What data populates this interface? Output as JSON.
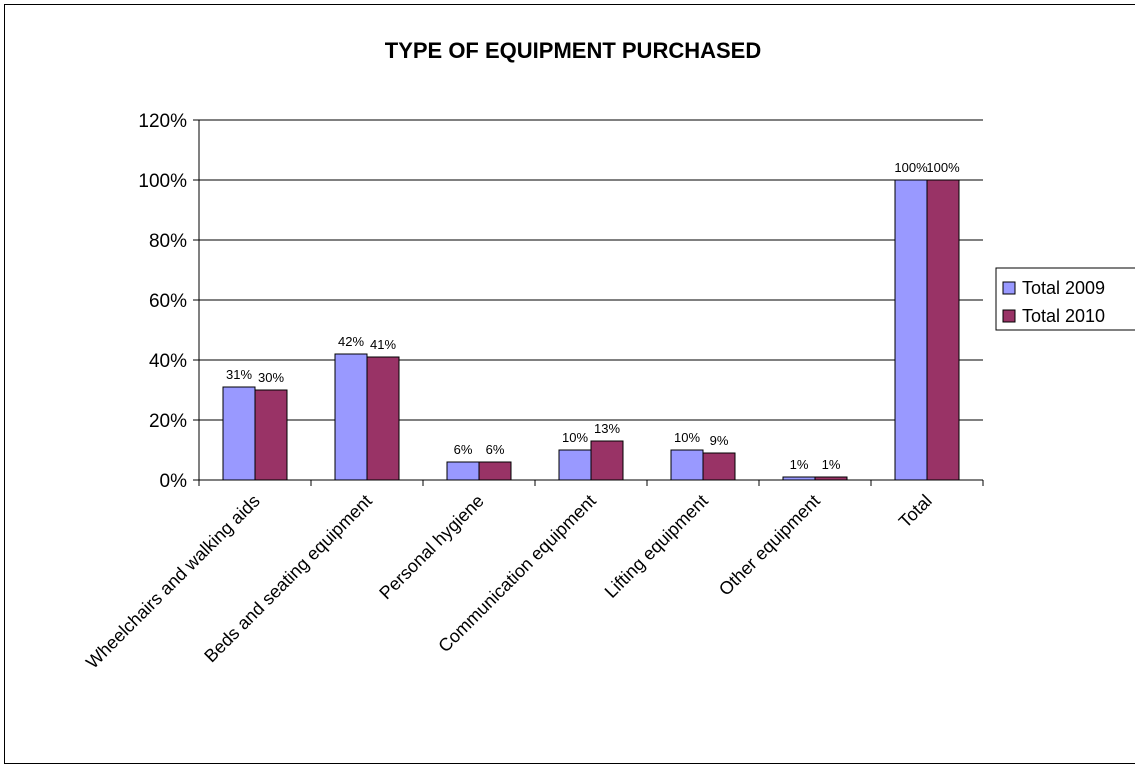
{
  "chart_data": {
    "type": "bar",
    "title": "TYPE OF EQUIPMENT PURCHASED",
    "xlabel": "",
    "ylabel": "",
    "categories": [
      "Wheelchairs and walking aids",
      "Beds and seating equipment",
      "Personal hygiene",
      "Communication equipment",
      "Lifting equipment",
      "Other equipment",
      "Total"
    ],
    "series": [
      {
        "name": "Total 2009",
        "color": "#9999FF",
        "values": [
          31,
          42,
          6,
          10,
          10,
          1,
          100
        ],
        "labels": [
          "31%",
          "42%",
          "6%",
          "10%",
          "10%",
          "1%",
          "100%"
        ]
      },
      {
        "name": "Total 2010",
        "color": "#993366",
        "values": [
          30,
          41,
          6,
          13,
          9,
          1,
          100
        ],
        "labels": [
          "30%",
          "41%",
          "6%",
          "13%",
          "9%",
          "1%",
          "100%"
        ]
      }
    ],
    "ylim": [
      0,
      120
    ],
    "yticks": [
      0,
      20,
      40,
      60,
      80,
      100,
      120
    ],
    "ytick_labels": [
      "0%",
      "20%",
      "40%",
      "60%",
      "80%",
      "100%",
      "120%"
    ],
    "grid": true,
    "legend_position": "right"
  }
}
